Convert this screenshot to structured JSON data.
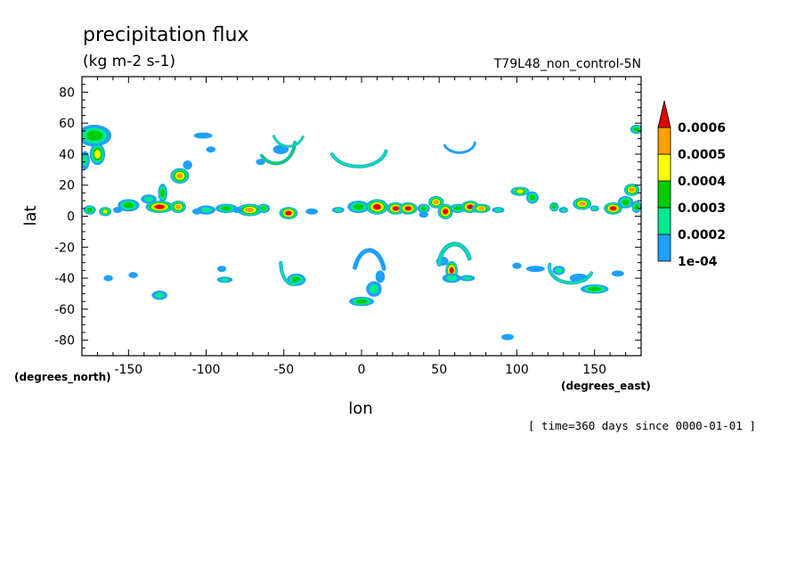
{
  "chart_data": {
    "type": "contour-map",
    "title": "precipitation flux",
    "units": "(kg m-2 s-1)",
    "run_label": "T79L48_non_control-5N",
    "xlabel": "lon",
    "ylabel": "lat",
    "x_unit_label": "(degrees_east)",
    "y_unit_label": "(degrees_north)",
    "time_label": "[ time=360 days since 0000-01-01 ]",
    "xlim": [
      -180,
      180
    ],
    "ylim": [
      -90,
      90
    ],
    "x_ticks": [
      -150,
      -100,
      -50,
      0,
      50,
      100,
      150
    ],
    "x_tick_labels": [
      "-150",
      "-100",
      "-50",
      "0",
      "50",
      "100",
      "150"
    ],
    "y_ticks": [
      80,
      60,
      40,
      20,
      0,
      -20,
      -40,
      -60,
      -80
    ],
    "y_tick_labels": [
      "80",
      "60",
      "40",
      "20",
      "0",
      "-20",
      "-40",
      "-60",
      "-80"
    ],
    "colorbar": {
      "levels": [
        0.0001,
        0.0002,
        0.0003,
        0.0004,
        0.0005,
        0.0006
      ],
      "labels": [
        "1e-04",
        "0.0002",
        "0.0003",
        "0.0004",
        "0.0005",
        "0.0006"
      ],
      "colors": [
        "#1fa0ff",
        "#00e890",
        "#00cc00",
        "#ffff00",
        "#ffa000",
        "#e00000"
      ]
    },
    "features": [
      {
        "lon": -172,
        "lat": 52,
        "rx": 11,
        "ry": 7,
        "level": 3
      },
      {
        "lon": -170,
        "lat": 40,
        "rx": 5,
        "ry": 7,
        "level": 4
      },
      {
        "lon": -178,
        "lat": 36,
        "rx": 3,
        "ry": 6,
        "level": 2
      },
      {
        "lon": -175,
        "lat": 4,
        "rx": 4,
        "ry": 3,
        "level": 3
      },
      {
        "lon": -165,
        "lat": 3,
        "rx": 4,
        "ry": 3,
        "level": 4
      },
      {
        "lon": -150,
        "lat": 7,
        "rx": 7,
        "ry": 4,
        "level": 3
      },
      {
        "lon": -130,
        "lat": 6,
        "rx": 9,
        "ry": 4,
        "level": 6
      },
      {
        "lon": -128,
        "lat": 15,
        "rx": 3,
        "ry": 6,
        "level": 3
      },
      {
        "lon": -118,
        "lat": 6,
        "rx": 5,
        "ry": 4,
        "level": 5
      },
      {
        "lon": -117,
        "lat": 26,
        "rx": 6,
        "ry": 5,
        "level": 5
      },
      {
        "lon": -112,
        "lat": 33,
        "rx": 3,
        "ry": 3,
        "level": 1
      },
      {
        "lon": -100,
        "lat": 4,
        "rx": 6,
        "ry": 3,
        "level": 2
      },
      {
        "lon": -87,
        "lat": 5,
        "rx": 7,
        "ry": 3,
        "level": 3
      },
      {
        "lon": -72,
        "lat": 4,
        "rx": 8,
        "ry": 4,
        "level": 5
      },
      {
        "lon": -63,
        "lat": 5,
        "rx": 4,
        "ry": 3,
        "level": 3
      },
      {
        "lon": -47,
        "lat": 2,
        "rx": 6,
        "ry": 4,
        "level": 6
      },
      {
        "lon": -32,
        "lat": 3,
        "rx": 4,
        "ry": 2,
        "level": 1
      },
      {
        "lon": -15,
        "lat": 4,
        "rx": 4,
        "ry": 2,
        "level": 2
      },
      {
        "lon": -2,
        "lat": 6,
        "rx": 7,
        "ry": 4,
        "level": 3
      },
      {
        "lon": 10,
        "lat": 6,
        "rx": 7,
        "ry": 5,
        "level": 6
      },
      {
        "lon": 22,
        "lat": 5,
        "rx": 6,
        "ry": 4,
        "level": 6
      },
      {
        "lon": 30,
        "lat": 5,
        "rx": 6,
        "ry": 4,
        "level": 6
      },
      {
        "lon": 40,
        "lat": 5,
        "rx": 4,
        "ry": 3,
        "level": 3
      },
      {
        "lon": 48,
        "lat": 9,
        "rx": 5,
        "ry": 4,
        "level": 5
      },
      {
        "lon": 54,
        "lat": 3,
        "rx": 5,
        "ry": 5,
        "level": 6
      },
      {
        "lon": 62,
        "lat": 5,
        "rx": 5,
        "ry": 3,
        "level": 3
      },
      {
        "lon": 70,
        "lat": 6,
        "rx": 6,
        "ry": 4,
        "level": 6
      },
      {
        "lon": 77,
        "lat": 5,
        "rx": 6,
        "ry": 3,
        "level": 5
      },
      {
        "lon": 88,
        "lat": 4,
        "rx": 4,
        "ry": 2,
        "level": 2
      },
      {
        "lon": 102,
        "lat": 16,
        "rx": 6,
        "ry": 3,
        "level": 4
      },
      {
        "lon": 110,
        "lat": 12,
        "rx": 4,
        "ry": 4,
        "level": 3
      },
      {
        "lon": 124,
        "lat": 6,
        "rx": 3,
        "ry": 3,
        "level": 3
      },
      {
        "lon": 130,
        "lat": 4,
        "rx": 3,
        "ry": 2,
        "level": 2
      },
      {
        "lon": 142,
        "lat": 8,
        "rx": 6,
        "ry": 4,
        "level": 5
      },
      {
        "lon": 150,
        "lat": 5,
        "rx": 3,
        "ry": 2,
        "level": 2
      },
      {
        "lon": 162,
        "lat": 5,
        "rx": 6,
        "ry": 4,
        "level": 6
      },
      {
        "lon": 170,
        "lat": 9,
        "rx": 5,
        "ry": 4,
        "level": 3
      },
      {
        "lon": 174,
        "lat": 17,
        "rx": 5,
        "ry": 4,
        "level": 5
      },
      {
        "lon": 177,
        "lat": 6,
        "rx": 3,
        "ry": 4,
        "level": 3
      },
      {
        "lon": 177,
        "lat": 56,
        "rx": 4,
        "ry": 3,
        "level": 3
      },
      {
        "lon": -102,
        "lat": 52,
        "rx": 6,
        "ry": 2,
        "level": 1
      },
      {
        "lon": -97,
        "lat": 43,
        "rx": 3,
        "ry": 2,
        "level": 1
      },
      {
        "lon": -65,
        "lat": 35,
        "rx": 3,
        "ry": 2,
        "level": 1
      },
      {
        "lon": -52,
        "lat": 43,
        "rx": 5,
        "ry": 3,
        "level": 1
      },
      {
        "lon": -157,
        "lat": 4,
        "rx": 3,
        "ry": 2,
        "level": 1
      },
      {
        "lon": -137,
        "lat": 11,
        "rx": 5,
        "ry": 3,
        "level": 2
      },
      {
        "lon": -106,
        "lat": 3,
        "rx": 3,
        "ry": 2,
        "level": 1
      },
      {
        "lon": -80,
        "lat": 4,
        "rx": 3,
        "ry": 2,
        "level": 1
      },
      {
        "lon": 58,
        "lat": -35,
        "rx": 4,
        "ry": 6,
        "level": 6
      },
      {
        "lon": 58,
        "lat": -40,
        "rx": 6,
        "ry": 3,
        "level": 2
      },
      {
        "lon": -42,
        "lat": -41,
        "rx": 6,
        "ry": 4,
        "level": 3
      },
      {
        "lon": 0,
        "lat": -55,
        "rx": 8,
        "ry": 3,
        "level": 3
      },
      {
        "lon": 8,
        "lat": -47,
        "rx": 5,
        "ry": 5,
        "level": 2
      },
      {
        "lon": -130,
        "lat": -51,
        "rx": 5,
        "ry": 3,
        "level": 2
      },
      {
        "lon": -88,
        "lat": -41,
        "rx": 5,
        "ry": 2,
        "level": 2
      },
      {
        "lon": 127,
        "lat": -35,
        "rx": 4,
        "ry": 3,
        "level": 2
      },
      {
        "lon": 150,
        "lat": -47,
        "rx": 9,
        "ry": 3,
        "level": 3
      },
      {
        "lon": 140,
        "lat": -40,
        "rx": 6,
        "ry": 3,
        "level": 1
      },
      {
        "lon": 112,
        "lat": -34,
        "rx": 6,
        "ry": 2,
        "level": 1
      },
      {
        "lon": 165,
        "lat": -37,
        "rx": 4,
        "ry": 2,
        "level": 1
      },
      {
        "lon": -163,
        "lat": -40,
        "rx": 3,
        "ry": 2,
        "level": 1
      },
      {
        "lon": -90,
        "lat": -34,
        "rx": 3,
        "ry": 2,
        "level": 1
      },
      {
        "lon": 12,
        "lat": -39,
        "rx": 3,
        "ry": 4,
        "level": 1
      },
      {
        "lon": 100,
        "lat": -32,
        "rx": 3,
        "ry": 2,
        "level": 1
      },
      {
        "lon": 94,
        "lat": -78,
        "rx": 4,
        "ry": 2,
        "level": 1
      },
      {
        "lon": 68,
        "lat": -40,
        "rx": 5,
        "ry": 2,
        "level": 2
      },
      {
        "lon": 52,
        "lat": -29,
        "rx": 4,
        "ry": 3,
        "level": 1
      },
      {
        "lon": -147,
        "lat": -38,
        "rx": 3,
        "ry": 2,
        "level": 1
      },
      {
        "lon": 40,
        "lat": 1,
        "rx": 3,
        "ry": 2,
        "level": 1
      }
    ],
    "arcs": [
      {
        "lon": -55,
        "lat": 48,
        "rx": 12,
        "ry": 14,
        "a0": 220,
        "a1": 360,
        "w": 4,
        "level": 3
      },
      {
        "lon": -47,
        "lat": 55,
        "rx": 10,
        "ry": 10,
        "a0": 200,
        "a1": 340,
        "w": 3,
        "level": 2
      },
      {
        "lon": -2,
        "lat": 44,
        "rx": 18,
        "ry": 12,
        "a0": 200,
        "a1": 350,
        "w": 4,
        "level": 2
      },
      {
        "lon": 63,
        "lat": 48,
        "rx": 10,
        "ry": 7,
        "a0": 200,
        "a1": 360,
        "w": 3,
        "level": 1
      },
      {
        "lon": -44,
        "lat": -30,
        "rx": 8,
        "ry": 14,
        "a0": 180,
        "a1": 300,
        "w": 4,
        "level": 2
      },
      {
        "lon": 5,
        "lat": -40,
        "rx": 10,
        "ry": 18,
        "a0": 20,
        "a1": 160,
        "w": 5,
        "level": 1
      },
      {
        "lon": 135,
        "lat": -33,
        "rx": 14,
        "ry": 10,
        "a0": 170,
        "a1": 340,
        "w": 4,
        "level": 2
      },
      {
        "lon": 60,
        "lat": -32,
        "rx": 10,
        "ry": 14,
        "a0": 20,
        "a1": 180,
        "w": 5,
        "level": 2
      }
    ]
  }
}
